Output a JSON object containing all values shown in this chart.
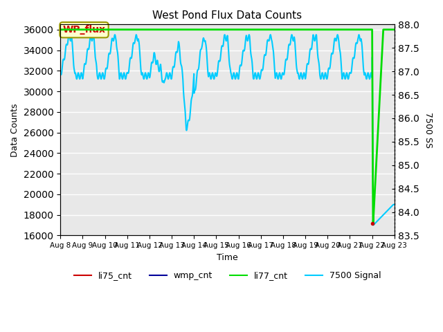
{
  "title": "West Pond Flux Data Counts",
  "xlabel": "Time",
  "ylabel": "Data Counts",
  "ylabel_right": "7500 SS",
  "ylim_left": [
    16000,
    36500
  ],
  "ylim_right": [
    83.5,
    88.0
  ],
  "yticks_left": [
    16000,
    18000,
    20000,
    22000,
    24000,
    26000,
    28000,
    30000,
    32000,
    34000,
    36000
  ],
  "yticks_right": [
    83.5,
    84.0,
    84.5,
    85.0,
    85.5,
    86.0,
    86.5,
    87.0,
    87.5,
    88.0
  ],
  "bg_color": "#e8e8e8",
  "fig_bg_color": "#ffffff",
  "annotation_box": {
    "text": "WP_flux",
    "facecolor": "#ffffcc",
    "edgecolor": "#999900",
    "textcolor": "#cc0000"
  },
  "x_tick_days": [
    8,
    9,
    10,
    11,
    12,
    13,
    14,
    15,
    16,
    17,
    18,
    19,
    20,
    21,
    22,
    23
  ],
  "x_tick_labels": [
    "Aug 8",
    "Aug 9",
    "Aug 10",
    "Aug 11",
    "Aug 12",
    "Aug 13",
    "Aug 14",
    "Aug 15",
    "Aug 16",
    "Aug 17",
    "Aug 18",
    "Aug 19",
    "Aug 20",
    "Aug 21",
    "Aug 22",
    "Aug 23"
  ],
  "cyan_color": "#00ccff",
  "green_color": "#00dd00",
  "red_color": "#cc0000",
  "blue_color": "#000099"
}
